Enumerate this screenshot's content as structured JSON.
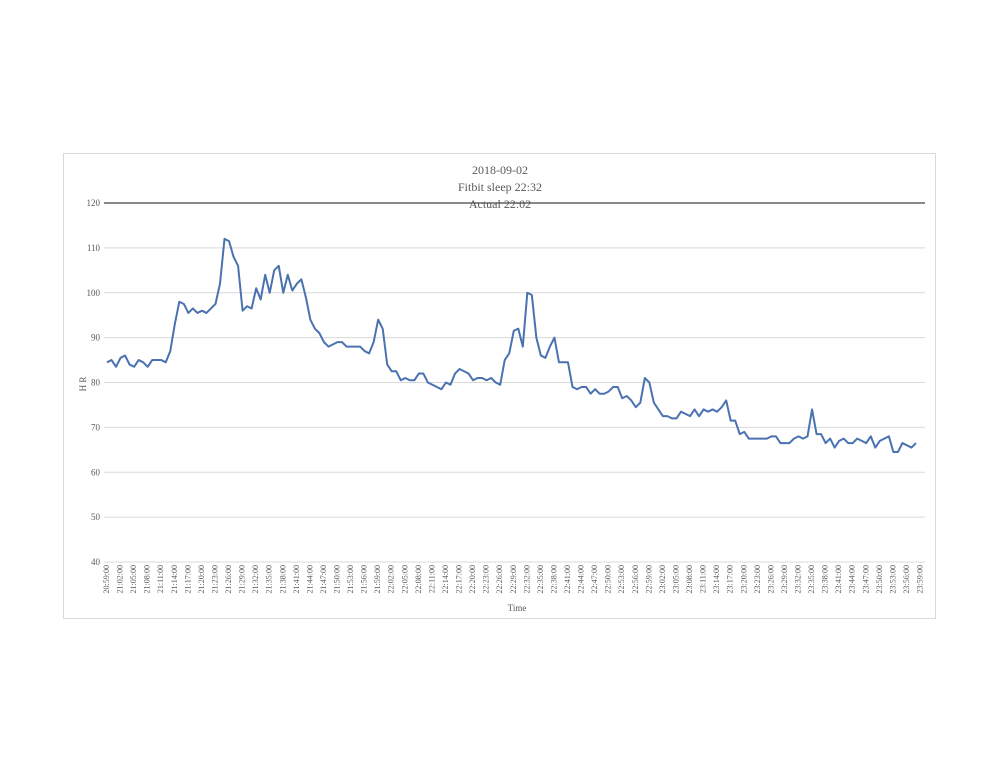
{
  "chart_data": {
    "type": "line",
    "title_lines": [
      "2018-09-02",
      "Fitbit sleep 22:32",
      "Actual 22:02"
    ],
    "xlabel": "Time",
    "ylabel": "H R",
    "ylim": [
      40,
      120
    ],
    "yticks": [
      40,
      50,
      60,
      70,
      80,
      90,
      100,
      110,
      120
    ],
    "grid": true,
    "legend": "none",
    "line_color": "#4a72b0",
    "x_tick_labels": [
      "20:59:00",
      "21:02:00",
      "21:05:00",
      "21:08:00",
      "21:11:00",
      "21:14:00",
      "21:17:00",
      "21:20:00",
      "21:23:00",
      "21:26:00",
      "21:29:00",
      "21:32:00",
      "21:35:00",
      "21:38:00",
      "21:41:00",
      "21:44:00",
      "21:47:00",
      "21:50:00",
      "21:53:00",
      "21:56:00",
      "21:59:00",
      "22:02:00",
      "22:05:00",
      "22:08:00",
      "22:11:00",
      "22:14:00",
      "22:17:00",
      "22:20:00",
      "22:23:00",
      "22:26:00",
      "22:29:00",
      "22:32:00",
      "22:35:00",
      "22:38:00",
      "22:41:00",
      "22:44:00",
      "22:47:00",
      "22:50:00",
      "22:53:00",
      "22:56:00",
      "22:59:00",
      "23:02:00",
      "23:05:00",
      "23:08:00",
      "23:11:00",
      "23:14:00",
      "23:17:00",
      "23:20:00",
      "23:23:00",
      "23:26:00",
      "23:29:00",
      "23:32:00",
      "23:35:00",
      "23:38:00",
      "23:41:00",
      "23:44:00",
      "23:47:00",
      "23:50:00",
      "23:53:00",
      "23:56:00",
      "23:59:00"
    ],
    "series": [
      {
        "values": [
          84.5,
          85,
          83.5,
          85.5,
          86,
          84,
          83.5,
          85,
          84.5,
          83.5,
          85,
          85,
          85,
          84.5,
          87,
          93,
          98,
          97.5,
          95.5,
          96.5,
          95.5,
          96,
          95.5,
          96.5,
          97.5,
          102,
          112,
          111.5,
          108,
          106,
          96,
          97,
          96.5,
          101,
          98.5,
          104,
          100,
          105,
          106,
          100,
          104,
          100.5,
          102,
          103,
          99,
          94,
          92,
          91,
          89,
          88,
          88.5,
          89,
          89,
          88,
          88,
          88,
          88,
          87,
          86.5,
          89,
          94,
          92,
          84,
          82.5,
          82.5,
          80.5,
          81,
          80.5,
          80.5,
          82,
          82,
          80,
          79.5,
          79,
          78.5,
          80,
          79.5,
          82,
          83,
          82.5,
          82,
          80.5,
          81,
          81,
          80.5,
          81,
          80,
          79.5,
          85,
          86.5,
          91.5,
          92,
          88,
          100,
          99.5,
          90,
          86,
          85.5,
          88,
          90,
          84.5,
          84.5,
          84.5,
          79,
          78.5,
          79,
          79,
          77.5,
          78.5,
          77.5,
          77.5,
          78,
          79,
          79,
          76.5,
          77,
          76,
          74.5,
          75.5,
          81,
          80,
          75.5,
          74,
          72.5,
          72.5,
          72,
          72,
          73.5,
          73,
          72.5,
          74,
          72.5,
          74,
          73.5,
          74,
          73.5,
          74.5,
          76,
          71.5,
          71.5,
          68.5,
          69,
          67.5,
          67.5,
          67.5,
          67.5,
          67.5,
          68,
          68,
          66.5,
          66.5,
          66.5,
          67.5,
          68,
          67.5,
          68,
          74,
          68.5,
          68.5,
          66.5,
          67.5,
          65.5,
          67,
          67.5,
          66.5,
          66.5,
          67.5,
          67,
          66.5,
          68,
          65.5,
          67,
          67.5,
          68,
          64.5,
          64.5,
          66.5,
          66,
          65.5,
          66.5
        ]
      }
    ]
  }
}
